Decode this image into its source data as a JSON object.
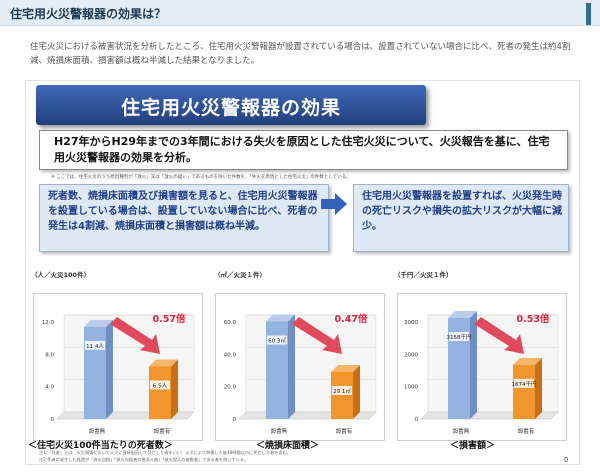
{
  "header": {
    "title": "住宅用火災警報器の効果は？"
  },
  "intro": {
    "text": "住宅火災における被害状況を分析したところ、住宅用火災警報器が設置されている場合は、設置されていない場合に比べ、死者の発生は約4割減、焼損床面積、損害額は概ね半減した結果となりました。"
  },
  "slide": {
    "banner": "住宅用火災警報器の効果",
    "summary": "H27年からH29年までの3年間における失火を原因とした住宅火災について、火災報告を基に、住宅用火災警報器の効果を分析。",
    "note": "※ ここでは、住宅火災のうち原因種別が「放火」又は「放火の疑い」であるものを除いた件数を、「失火を原因とした住宅火災」の件数としている。",
    "finding": "死者数、焼損床面積及び損害額を見ると、住宅用火災警報器を設置している場合は、設置していない場合に比べ、死者の発生は4割減、焼損床面積と損害額は概ね半減。",
    "conclusion": "住宅用火災警報器を設置すれば、火災発生時の死亡リスクや損失の拡大リスクが大幅に減少。",
    "page_number": "0",
    "footnotes": [
      "注1:「死者」とは、火災現場において火災に直接起因して死亡した者をいい、火災により負傷した後48時間以内に死亡した者を含む。",
      "注2:死者の発生した経過が「放火自殺」「放火自殺者の巻添え者」「放火殺人の被害者」である者を除いている。"
    ]
  },
  "chart_data": [
    {
      "type": "bar",
      "unit": "（人／火災100件）",
      "categories": [
        "設置無",
        "設置有"
      ],
      "values": [
        11.4,
        6.5
      ],
      "value_labels": [
        "11.4人",
        "6.5人"
      ],
      "ylim": [
        0,
        12
      ],
      "yticks": [
        "0",
        "4.0",
        "8.0",
        "12.0"
      ],
      "ratio": "0.57倍",
      "xlabel": "＜住宅火災100件当たりの死者数＞",
      "colors": [
        "#93b3e0",
        "#f0962c"
      ]
    },
    {
      "type": "bar",
      "unit": "（㎡／火災１件）",
      "categories": [
        "設置無",
        "設置有"
      ],
      "values": [
        60.3,
        29.1
      ],
      "value_labels": [
        "60.3㎡",
        "29.1㎡"
      ],
      "ylim": [
        0,
        60
      ],
      "yticks": [
        "0",
        "20.0",
        "40.0",
        "60.0"
      ],
      "ratio": "0.47倍",
      "xlabel": "＜焼損床面積＞",
      "colors": [
        "#93b3e0",
        "#f0962c"
      ]
    },
    {
      "type": "bar",
      "unit": "（千円／火災１件）",
      "categories": [
        "設置無",
        "設置有"
      ],
      "values": [
        3158,
        1674
      ],
      "value_labels": [
        "3158千円",
        "1674千円"
      ],
      "ylim": [
        0,
        3000
      ],
      "yticks": [
        "0",
        "1000",
        "2000",
        "3000"
      ],
      "ratio": "0.53倍",
      "xlabel": "＜損害額＞",
      "colors": [
        "#93b3e0",
        "#f0962c"
      ]
    }
  ]
}
